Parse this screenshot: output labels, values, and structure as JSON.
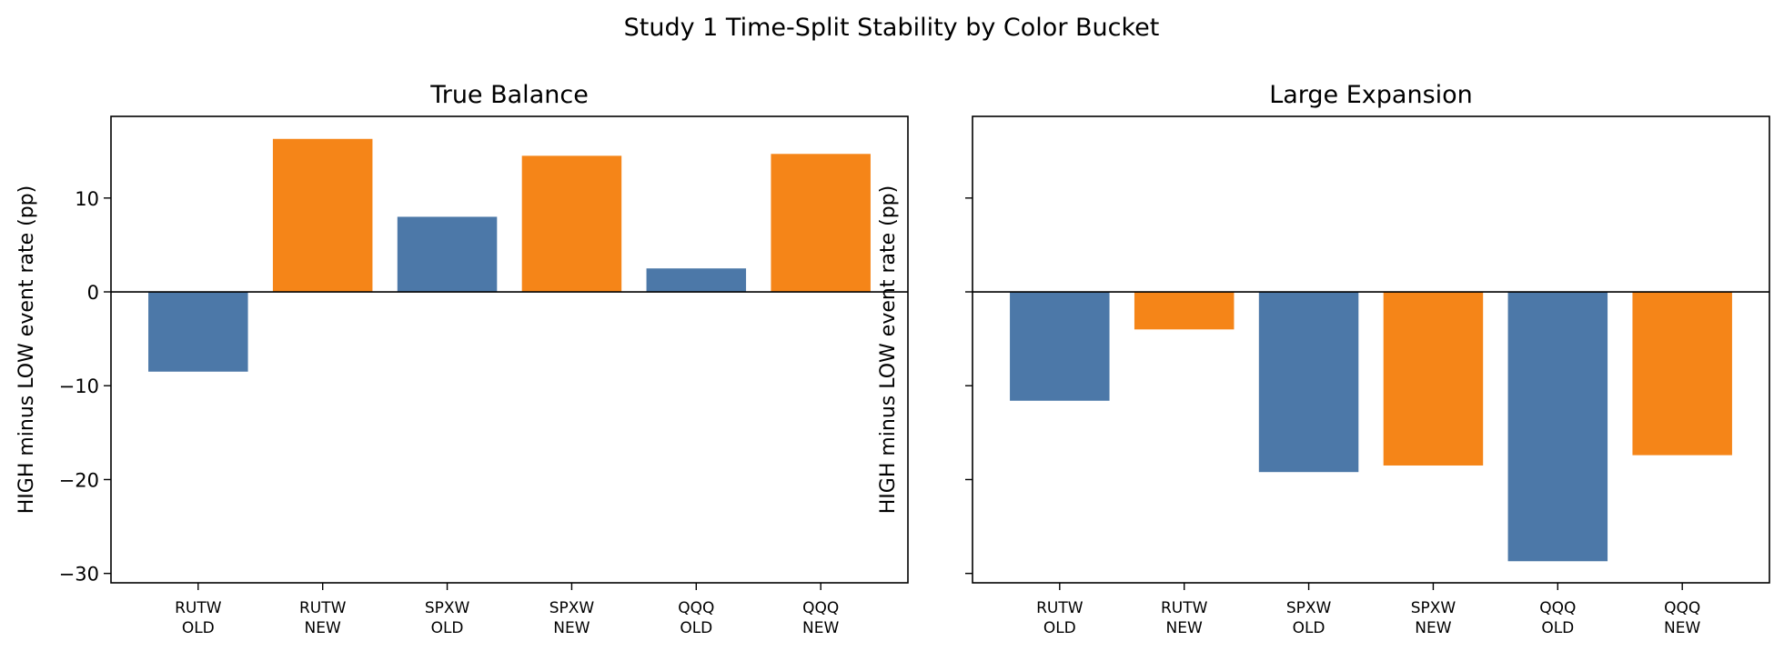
{
  "figure": {
    "title": "Study 1 Time-Split Stability by Color Bucket"
  },
  "colors": {
    "old": "#4c78a8",
    "new": "#f58518",
    "zero_line": "#000000"
  },
  "chart_data": [
    {
      "type": "bar",
      "title": "True Balance",
      "ylabel": "HIGH minus LOW event rate (pp)",
      "categories": [
        [
          "RUTW",
          "OLD"
        ],
        [
          "RUTW",
          "NEW"
        ],
        [
          "SPXW",
          "OLD"
        ],
        [
          "SPXW",
          "NEW"
        ],
        [
          "QQQ",
          "OLD"
        ],
        [
          "QQQ",
          "NEW"
        ]
      ],
      "values": [
        -8.5,
        16.3,
        8.0,
        14.5,
        2.5,
        14.7
      ],
      "bar_colors": [
        "old",
        "new",
        "old",
        "new",
        "old",
        "new"
      ],
      "ylim": [
        -31,
        18.7
      ],
      "yticks": [
        -30,
        -20,
        -10,
        0,
        10
      ],
      "ytick_labels": [
        "−30",
        "−20",
        "−10",
        "0",
        "10"
      ],
      "grid": false
    },
    {
      "type": "bar",
      "title": "Large Expansion",
      "ylabel": "HIGH minus LOW event rate (pp)",
      "categories": [
        [
          "RUTW",
          "OLD"
        ],
        [
          "RUTW",
          "NEW"
        ],
        [
          "SPXW",
          "OLD"
        ],
        [
          "SPXW",
          "NEW"
        ],
        [
          "QQQ",
          "OLD"
        ],
        [
          "QQQ",
          "NEW"
        ]
      ],
      "values": [
        -11.6,
        -4.0,
        -19.2,
        -18.5,
        -28.7,
        -17.4
      ],
      "bar_colors": [
        "old",
        "new",
        "old",
        "new",
        "old",
        "new"
      ],
      "ylim": [
        -31,
        18.7
      ],
      "yticks": [
        -30,
        -20,
        -10,
        0,
        10
      ],
      "ytick_labels": [
        "",
        "",
        "",
        "",
        ""
      ],
      "grid": false
    }
  ]
}
